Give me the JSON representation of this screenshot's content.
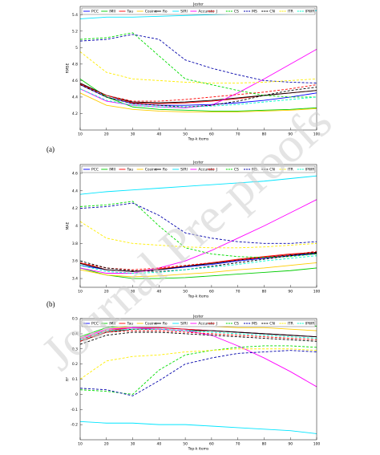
{
  "watermark": "Journal Pre-proofs",
  "chart_data": [
    {
      "type": "line",
      "title": "Jester",
      "ylabel": "RMSE",
      "xlabel": "Top-k items",
      "panel_label": "(a)",
      "x": [
        10,
        20,
        30,
        40,
        50,
        60,
        70,
        80,
        90,
        100
      ],
      "xlim": [
        10,
        100
      ],
      "xticks": [
        10,
        20,
        30,
        40,
        50,
        60,
        70,
        80,
        90,
        100
      ],
      "ylim": [
        4,
        5.5
      ],
      "yticks": [
        4.2,
        4.4,
        4.6,
        4.8,
        5,
        5.2,
        5.4
      ],
      "series": [
        {
          "name": "PCC",
          "color": "#0000ff",
          "dash": false,
          "values": [
            4.55,
            4.4,
            4.32,
            4.3,
            4.3,
            4.31,
            4.33,
            4.36,
            4.4,
            4.45
          ]
        },
        {
          "name": "IMII",
          "color": "#00cc00",
          "dash": false,
          "values": [
            4.62,
            4.4,
            4.28,
            4.25,
            4.24,
            4.23,
            4.23,
            4.24,
            4.25,
            4.27
          ]
        },
        {
          "name": "Tau",
          "color": "#ff0000",
          "dash": false,
          "values": [
            4.56,
            4.42,
            4.33,
            4.32,
            4.33,
            4.35,
            4.38,
            4.42,
            4.45,
            4.48
          ]
        },
        {
          "name": "Cosine",
          "color": "#ffcc00",
          "dash": false,
          "values": [
            4.45,
            4.3,
            4.25,
            4.23,
            4.22,
            4.22,
            4.22,
            4.23,
            4.24,
            4.26
          ]
        },
        {
          "name": "Ro",
          "color": "#000000",
          "dash": false,
          "values": [
            4.57,
            4.42,
            4.34,
            4.33,
            4.34,
            4.36,
            4.39,
            4.42,
            4.45,
            4.48
          ]
        },
        {
          "name": "SIRI",
          "color": "#00e5ff",
          "dash": false,
          "values": [
            5.35,
            5.37,
            5.37,
            5.38,
            5.39,
            5.4,
            5.41,
            5.42,
            5.43,
            5.45
          ]
        },
        {
          "name": "Accurate",
          "color": "#ff00ff",
          "dash": false,
          "values": [
            4.5,
            4.35,
            4.3,
            4.28,
            4.27,
            4.3,
            4.45,
            4.62,
            4.8,
            4.98
          ]
        },
        {
          "name": "J",
          "color": "#ff0000",
          "dash": true,
          "values": [
            4.55,
            4.42,
            4.35,
            4.35,
            4.37,
            4.4,
            4.43,
            4.46,
            4.5,
            4.55
          ]
        },
        {
          "name": "CS",
          "color": "#00dd00",
          "dash": true,
          "values": [
            5.1,
            5.12,
            5.18,
            4.9,
            4.62,
            4.55,
            4.48,
            4.42,
            4.4,
            4.4
          ]
        },
        {
          "name": "MS",
          "color": "#0000aa",
          "dash": true,
          "values": [
            5.08,
            5.1,
            5.16,
            5.1,
            4.85,
            4.75,
            4.67,
            4.6,
            4.58,
            4.57
          ]
        },
        {
          "name": "CN",
          "color": "#000000",
          "dash": true,
          "values": [
            4.55,
            4.4,
            4.32,
            4.3,
            4.28,
            4.3,
            4.35,
            4.42,
            4.48,
            4.52
          ]
        },
        {
          "name": "ITR",
          "color": "#ffee00",
          "dash": true,
          "values": [
            4.95,
            4.7,
            4.62,
            4.6,
            4.58,
            4.57,
            4.57,
            4.58,
            4.6,
            4.62
          ]
        },
        {
          "name": "IPWR",
          "color": "#00ffcc",
          "dash": true,
          "values": [
            4.5,
            4.36,
            4.3,
            4.28,
            4.28,
            4.29,
            4.31,
            4.34,
            4.37,
            4.4
          ]
        }
      ]
    },
    {
      "type": "line",
      "title": "Jester",
      "ylabel": "MAE",
      "xlabel": "Top-k items",
      "panel_label": "(b)",
      "x": [
        10,
        20,
        30,
        40,
        50,
        60,
        70,
        80,
        90,
        100
      ],
      "xlim": [
        10,
        100
      ],
      "xticks": [
        10,
        20,
        30,
        40,
        50,
        60,
        70,
        80,
        90,
        100
      ],
      "ylim": [
        3.3,
        4.7
      ],
      "yticks": [
        3.4,
        3.6,
        3.8,
        4,
        4.2,
        4.4,
        4.6
      ],
      "series": [
        {
          "name": "PCC",
          "color": "#0000ff",
          "dash": false,
          "values": [
            3.55,
            3.5,
            3.48,
            3.5,
            3.53,
            3.56,
            3.6,
            3.63,
            3.66,
            3.68
          ]
        },
        {
          "name": "IMII",
          "color": "#00cc00",
          "dash": false,
          "values": [
            3.52,
            3.44,
            3.4,
            3.4,
            3.41,
            3.43,
            3.45,
            3.47,
            3.49,
            3.52
          ]
        },
        {
          "name": "Tau",
          "color": "#ff0000",
          "dash": false,
          "values": [
            3.58,
            3.5,
            3.48,
            3.51,
            3.54,
            3.58,
            3.62,
            3.65,
            3.68,
            3.7
          ]
        },
        {
          "name": "Cosine",
          "color": "#ffcc00",
          "dash": false,
          "values": [
            3.5,
            3.44,
            3.42,
            3.43,
            3.45,
            3.47,
            3.5,
            3.52,
            3.55,
            3.58
          ]
        },
        {
          "name": "Ro",
          "color": "#000000",
          "dash": false,
          "values": [
            3.57,
            3.5,
            3.48,
            3.5,
            3.54,
            3.57,
            3.61,
            3.64,
            3.67,
            3.69
          ]
        },
        {
          "name": "SIRI",
          "color": "#00e5ff",
          "dash": false,
          "values": [
            4.36,
            4.39,
            4.41,
            4.43,
            4.45,
            4.47,
            4.49,
            4.51,
            4.54,
            4.57
          ]
        },
        {
          "name": "Accurate",
          "color": "#ff00ff",
          "dash": false,
          "values": [
            3.52,
            3.46,
            3.46,
            3.52,
            3.6,
            3.72,
            3.86,
            4,
            4.15,
            4.3
          ]
        },
        {
          "name": "J",
          "color": "#ff0000",
          "dash": true,
          "values": [
            3.58,
            3.52,
            3.5,
            3.52,
            3.55,
            3.58,
            3.61,
            3.64,
            3.67,
            3.71
          ]
        },
        {
          "name": "CS",
          "color": "#00dd00",
          "dash": true,
          "values": [
            4.22,
            4.24,
            4.28,
            4,
            3.75,
            3.68,
            3.65,
            3.64,
            3.65,
            3.68
          ]
        },
        {
          "name": "MS",
          "color": "#0000aa",
          "dash": true,
          "values": [
            4.2,
            4.22,
            4.26,
            4.12,
            3.92,
            3.86,
            3.82,
            3.8,
            3.8,
            3.82
          ]
        },
        {
          "name": "CN",
          "color": "#000000",
          "dash": true,
          "values": [
            3.6,
            3.52,
            3.49,
            3.48,
            3.5,
            3.54,
            3.58,
            3.62,
            3.66,
            3.7
          ]
        },
        {
          "name": "ITR",
          "color": "#ffee00",
          "dash": true,
          "values": [
            4.05,
            3.86,
            3.8,
            3.78,
            3.76,
            3.75,
            3.75,
            3.76,
            3.78,
            3.8
          ]
        },
        {
          "name": "IPWR",
          "color": "#00ffcc",
          "dash": true,
          "values": [
            3.55,
            3.48,
            3.46,
            3.47,
            3.5,
            3.53,
            3.56,
            3.6,
            3.63,
            3.66
          ]
        }
      ]
    },
    {
      "type": "line",
      "title": "Jester",
      "ylabel": "R²",
      "xlabel": "Top-k items",
      "x": [
        10,
        20,
        30,
        40,
        50,
        60,
        70,
        80,
        90,
        100
      ],
      "xlim": [
        10,
        100
      ],
      "xticks": [
        10,
        20,
        30,
        40,
        50,
        60,
        70,
        80,
        90,
        100
      ],
      "ylim": [
        -0.3,
        0.5
      ],
      "yticks": [
        -0.2,
        -0.1,
        0,
        0.1,
        0.2,
        0.3,
        0.4,
        0.5
      ],
      "series": [
        {
          "name": "PCC",
          "color": "#0000ff",
          "dash": false,
          "values": [
            0.36,
            0.42,
            0.44,
            0.44,
            0.43,
            0.42,
            0.41,
            0.4,
            0.39,
            0.38
          ]
        },
        {
          "name": "IMII",
          "color": "#00cc00",
          "dash": false,
          "values": [
            0.38,
            0.44,
            0.46,
            0.47,
            0.47,
            0.47,
            0.46,
            0.46,
            0.46,
            0.45
          ]
        },
        {
          "name": "Tau",
          "color": "#ff0000",
          "dash": false,
          "values": [
            0.36,
            0.42,
            0.44,
            0.44,
            0.43,
            0.42,
            0.41,
            0.4,
            0.39,
            0.38
          ]
        },
        {
          "name": "Cosine",
          "color": "#ffcc00",
          "dash": false,
          "values": [
            0.37,
            0.43,
            0.45,
            0.45,
            0.45,
            0.45,
            0.44,
            0.44,
            0.43,
            0.42
          ]
        },
        {
          "name": "Ro",
          "color": "#000000",
          "dash": false,
          "values": [
            0.35,
            0.41,
            0.43,
            0.43,
            0.42,
            0.42,
            0.41,
            0.4,
            0.39,
            0.38
          ]
        },
        {
          "name": "SIRI",
          "color": "#00e5ff",
          "dash": false,
          "values": [
            -0.18,
            -0.19,
            -0.19,
            -0.2,
            -0.2,
            -0.21,
            -0.22,
            -0.23,
            -0.24,
            -0.26
          ]
        },
        {
          "name": "Accurate",
          "color": "#ff00ff",
          "dash": false,
          "values": [
            0.37,
            0.43,
            0.44,
            0.43,
            0.42,
            0.39,
            0.32,
            0.24,
            0.15,
            0.05
          ]
        },
        {
          "name": "J",
          "color": "#ff0000",
          "dash": true,
          "values": [
            0.35,
            0.41,
            0.42,
            0.42,
            0.41,
            0.4,
            0.39,
            0.38,
            0.37,
            0.36
          ]
        },
        {
          "name": "CS",
          "color": "#00dd00",
          "dash": true,
          "values": [
            0.03,
            0.02,
            0,
            0.16,
            0.26,
            0.29,
            0.31,
            0.32,
            0.32,
            0.31
          ]
        },
        {
          "name": "MS",
          "color": "#0000aa",
          "dash": true,
          "values": [
            0.04,
            0.03,
            -0.01,
            0.09,
            0.2,
            0.24,
            0.27,
            0.28,
            0.29,
            0.28
          ]
        },
        {
          "name": "CN",
          "color": "#000000",
          "dash": true,
          "values": [
            0.33,
            0.39,
            0.41,
            0.41,
            0.4,
            0.39,
            0.38,
            0.37,
            0.36,
            0.35
          ]
        },
        {
          "name": "ITR",
          "color": "#ffee00",
          "dash": true,
          "values": [
            0.1,
            0.22,
            0.25,
            0.26,
            0.28,
            0.29,
            0.3,
            0.3,
            0.3,
            0.29
          ]
        },
        {
          "name": "IPWR",
          "color": "#00ffcc",
          "dash": true,
          "values": [
            0.36,
            0.42,
            0.43,
            0.43,
            0.42,
            0.41,
            0.4,
            0.39,
            0.38,
            0.37
          ]
        }
      ]
    }
  ]
}
